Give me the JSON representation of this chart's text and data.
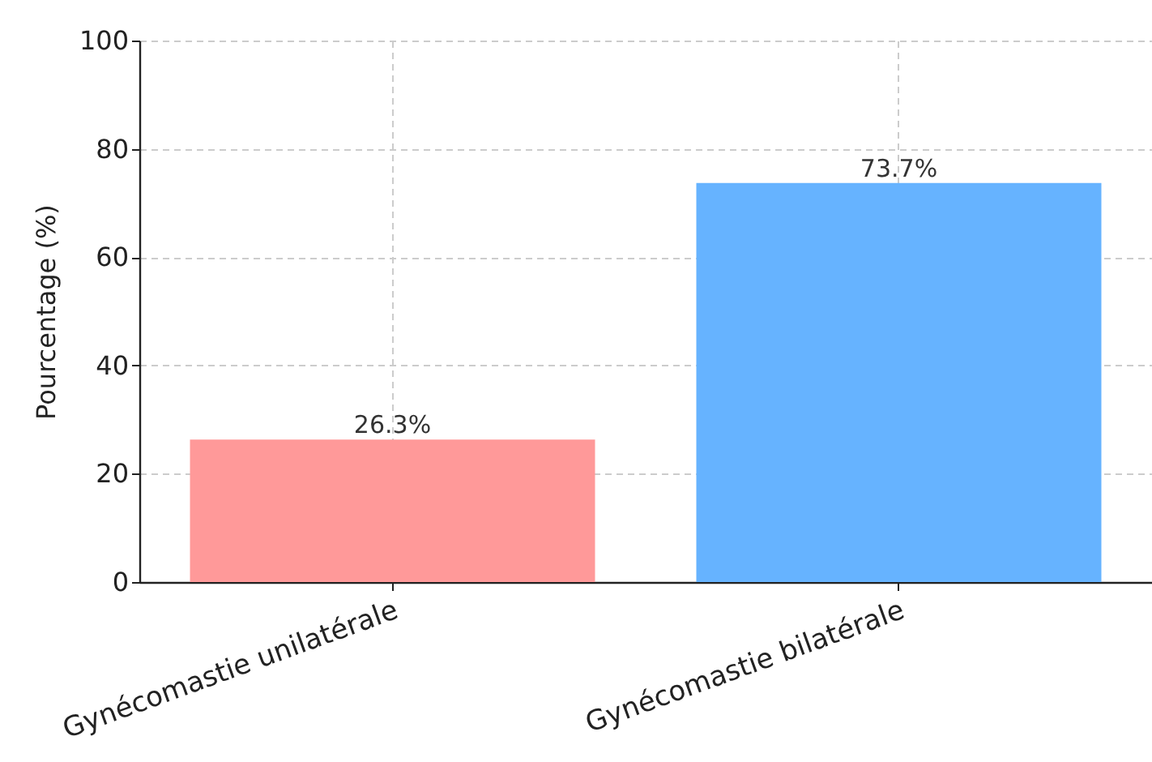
{
  "chart_data": {
    "type": "bar",
    "ylabel": "Pourcentage (%)",
    "categories": [
      "Gynécomastie unilatérale",
      "Gynécomastie bilatérale"
    ],
    "values": [
      26.3,
      73.7
    ],
    "colors": [
      "#ff9999",
      "#66b3ff"
    ],
    "value_labels": [
      "26.3%",
      "73.7%"
    ],
    "ylim": [
      0,
      100
    ],
    "yticks": [
      0,
      20,
      40,
      60,
      80,
      100
    ],
    "grid": true
  }
}
